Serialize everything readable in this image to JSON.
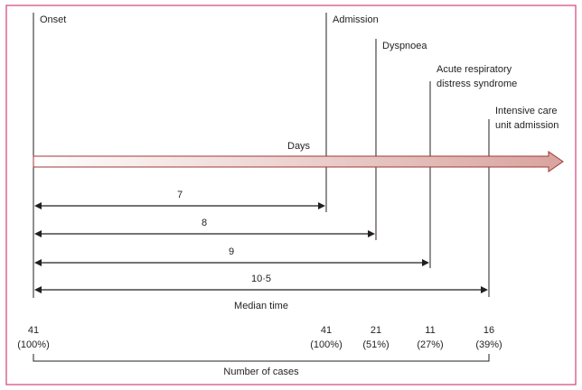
{
  "colors": {
    "frame": "#d1427a",
    "line": "#231f20",
    "arrow_start": "#ffffff",
    "arrow_end": "#d9a39e",
    "arrow_stroke": "#9e3a36"
  },
  "events": [
    {
      "label_lines": [
        "Onset"
      ]
    },
    {
      "label_lines": [
        "Admission"
      ]
    },
    {
      "label_lines": [
        "Dyspnoea"
      ]
    },
    {
      "label_lines": [
        "Acute respiratory",
        "distress syndrome"
      ]
    },
    {
      "label_lines": [
        "Intensive care",
        "unit admission"
      ]
    }
  ],
  "axis_label": "Days",
  "intervals": [
    {
      "value": "7"
    },
    {
      "value": "8"
    },
    {
      "value": "9"
    },
    {
      "value": "10·5"
    }
  ],
  "median_label": "Median time",
  "cases": [
    {
      "count": "41",
      "percent": "(100%)"
    },
    {
      "count": "41",
      "percent": "(100%)"
    },
    {
      "count": "21",
      "percent": "(51%)"
    },
    {
      "count": "11",
      "percent": "(27%)"
    },
    {
      "count": "16",
      "percent": "(39%)"
    }
  ],
  "cases_label": "Number of cases"
}
